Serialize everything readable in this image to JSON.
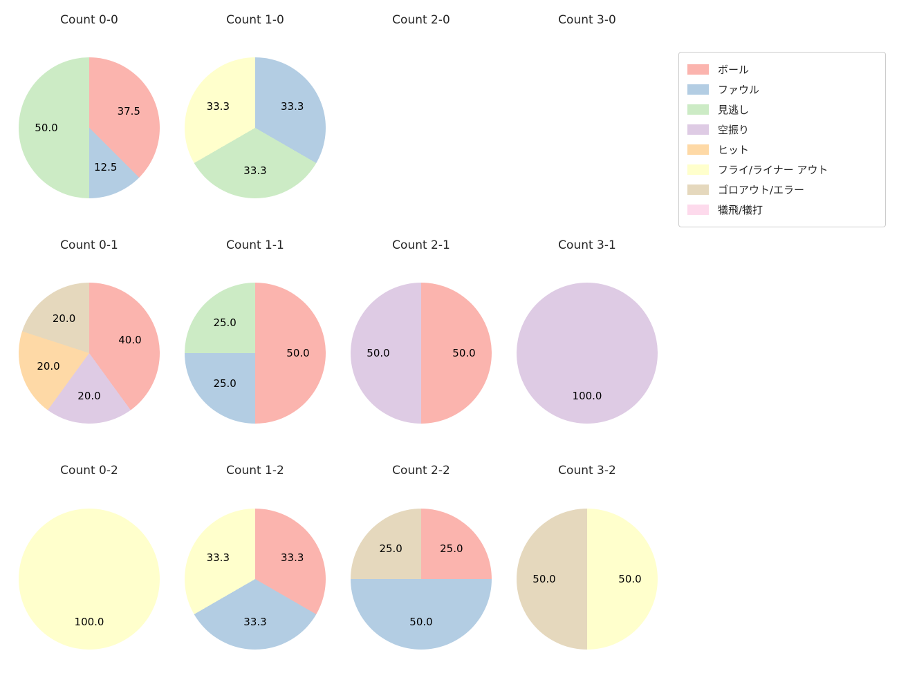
{
  "legend": {
    "items": [
      {
        "label": "ボール",
        "color": "#fbb4ae"
      },
      {
        "label": "ファウル",
        "color": "#b3cde3"
      },
      {
        "label": "見逃し",
        "color": "#ccebc5"
      },
      {
        "label": "空振り",
        "color": "#decbe4"
      },
      {
        "label": "ヒット",
        "color": "#fed9a6"
      },
      {
        "label": "フライ/ライナー アウト",
        "color": "#ffffcc"
      },
      {
        "label": "ゴロアウト/エラー",
        "color": "#e5d8bd"
      },
      {
        "label": "犠飛/犠打",
        "color": "#fddaec"
      }
    ]
  },
  "chart_data": [
    {
      "type": "pie",
      "title": "Count 0-0",
      "labels": [
        "ボール",
        "ファウル",
        "見逃し"
      ],
      "values": [
        37.5,
        12.5,
        50.0
      ]
    },
    {
      "type": "pie",
      "title": "Count 1-0",
      "labels": [
        "ファウル",
        "見逃し",
        "フライ/ライナー アウト"
      ],
      "values": [
        33.3,
        33.3,
        33.3
      ]
    },
    {
      "type": "pie",
      "title": "Count 2-0",
      "labels": [],
      "values": []
    },
    {
      "type": "pie",
      "title": "Count 3-0",
      "labels": [],
      "values": []
    },
    {
      "type": "pie",
      "title": "Count 0-1",
      "labels": [
        "ボール",
        "空振り",
        "ヒット",
        "ゴロアウト/エラー"
      ],
      "values": [
        40.0,
        20.0,
        20.0,
        20.0
      ]
    },
    {
      "type": "pie",
      "title": "Count 1-1",
      "labels": [
        "ボール",
        "ファウル",
        "見逃し"
      ],
      "values": [
        50.0,
        25.0,
        25.0
      ]
    },
    {
      "type": "pie",
      "title": "Count 2-1",
      "labels": [
        "ボール",
        "空振り"
      ],
      "values": [
        50.0,
        50.0
      ]
    },
    {
      "type": "pie",
      "title": "Count 3-1",
      "labels": [
        "空振り"
      ],
      "values": [
        100.0
      ]
    },
    {
      "type": "pie",
      "title": "Count 0-2",
      "labels": [
        "フライ/ライナー アウト"
      ],
      "values": [
        100.0
      ]
    },
    {
      "type": "pie",
      "title": "Count 1-2",
      "labels": [
        "ボール",
        "ファウル",
        "フライ/ライナー アウト"
      ],
      "values": [
        33.3,
        33.3,
        33.3
      ]
    },
    {
      "type": "pie",
      "title": "Count 2-2",
      "labels": [
        "ボール",
        "ファウル",
        "ゴロアウト/エラー"
      ],
      "values": [
        25.0,
        50.0,
        25.0
      ]
    },
    {
      "type": "pie",
      "title": "Count 3-2",
      "labels": [
        "フライ/ライナー アウト",
        "ゴロアウト/エラー"
      ],
      "values": [
        50.0,
        50.0
      ]
    }
  ]
}
